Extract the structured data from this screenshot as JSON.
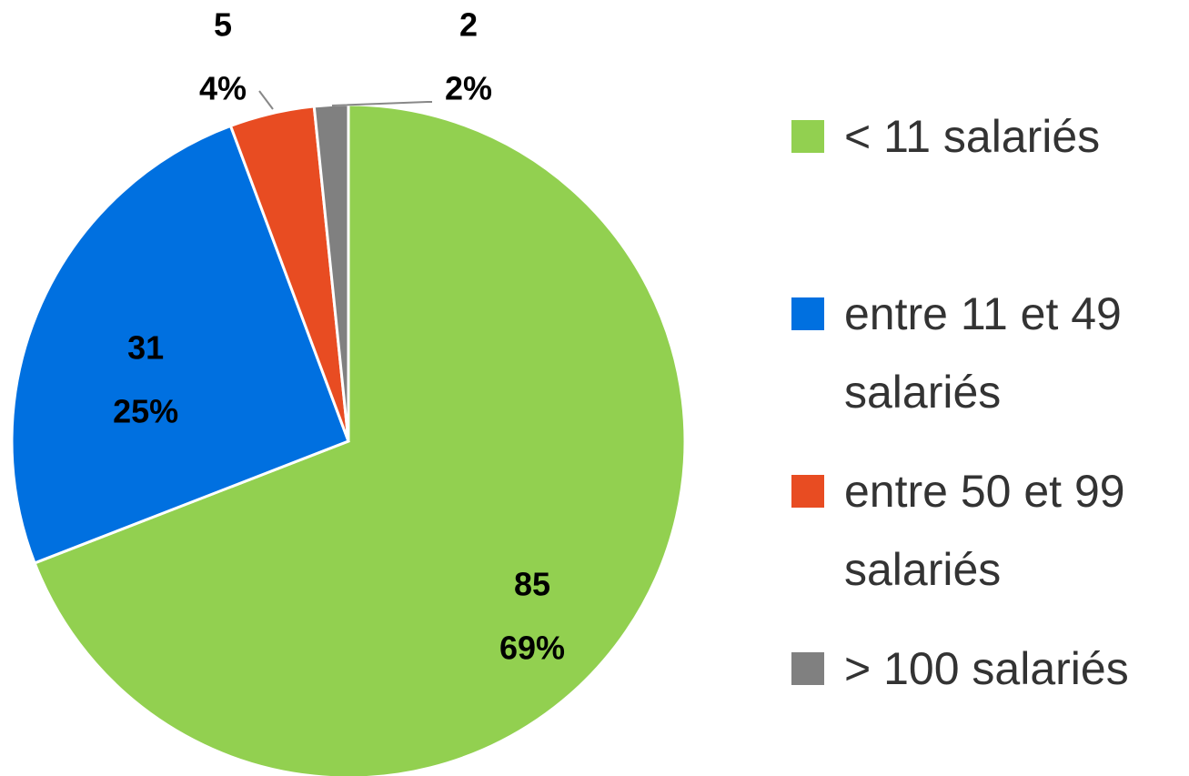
{
  "chart_data": {
    "type": "pie",
    "categories": [
      "< 11 salariés",
      "entre 11 et 49 salariés",
      "entre 50 et 99 salariés",
      "> 100 salariés"
    ],
    "values": [
      85,
      31,
      5,
      2
    ],
    "percent_labels": [
      "69%",
      "25%",
      "4%",
      "2%"
    ],
    "colors": [
      "#92d050",
      "#0070e0",
      "#e84c22",
      "#808080"
    ],
    "legend": "right"
  }
}
